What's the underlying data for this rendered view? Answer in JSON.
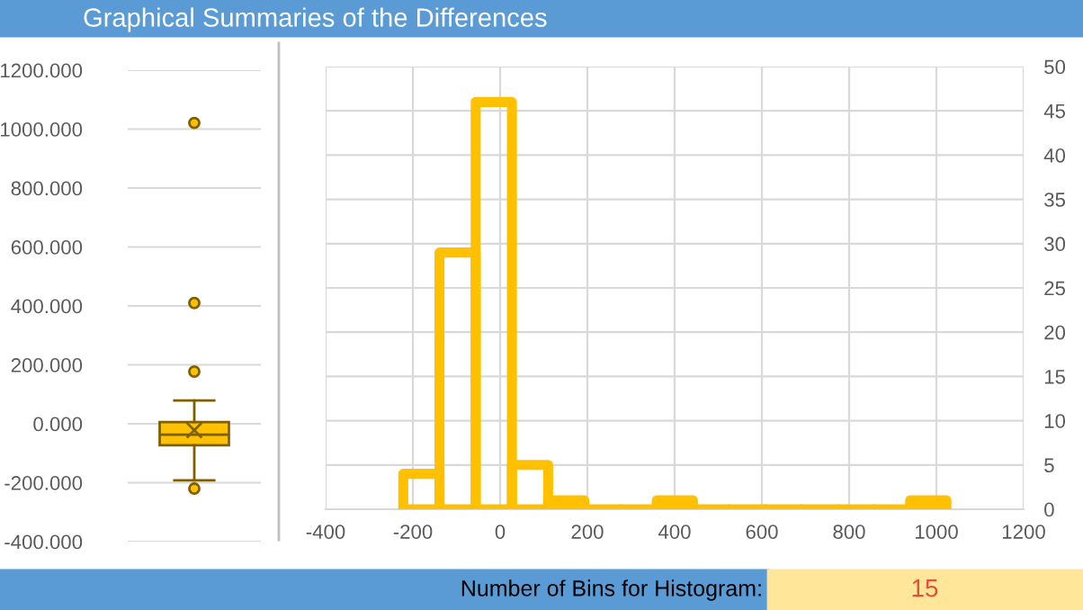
{
  "chart_data": [
    {
      "type": "box",
      "title": "Graphical Summaries of the Differences",
      "categories": [
        null
      ],
      "color": "#ffc000",
      "boxes": [
        {
          "low": -192,
          "q1": -73,
          "median": -37,
          "q3": 6,
          "high": 79,
          "mean": -22,
          "outliers": [
            1021,
            410,
            177,
            -220
          ]
        }
      ],
      "ylim": [
        -400,
        1200
      ],
      "yticks": [
        {
          "value": -400,
          "label": "-400.000"
        },
        {
          "value": -200,
          "label": "-200.000"
        },
        {
          "value": 0,
          "label": "0.000"
        },
        {
          "value": 200,
          "label": "200.000"
        },
        {
          "value": 400,
          "label": "400.000"
        },
        {
          "value": 600,
          "label": "600.000"
        },
        {
          "value": 800,
          "label": "800.000"
        },
        {
          "value": 1000,
          "label": "1000.000"
        },
        {
          "value": 1200,
          "label": "1200.000"
        }
      ],
      "grid": "y"
    },
    {
      "type": "histogram",
      "color": "#ffc000",
      "bins": [
        -222,
        -139,
        -56,
        27,
        110,
        193,
        276,
        359,
        442,
        525,
        608,
        691,
        774,
        857,
        940,
        1023
      ],
      "values": [
        4,
        29,
        46,
        5,
        1,
        0,
        0,
        1,
        0,
        0,
        0,
        0,
        0,
        0,
        1
      ],
      "xlim": [
        -400,
        1200
      ],
      "xticks": [
        -400,
        -200,
        0,
        200,
        400,
        600,
        800,
        1000,
        1200
      ],
      "ylim": [
        0,
        50
      ],
      "yticks": [
        0,
        5,
        10,
        15,
        20,
        25,
        30,
        35,
        40,
        45,
        50
      ],
      "grid": true,
      "annotations": [
        "Number of Bins for Histogram:",
        "15"
      ]
    }
  ]
}
